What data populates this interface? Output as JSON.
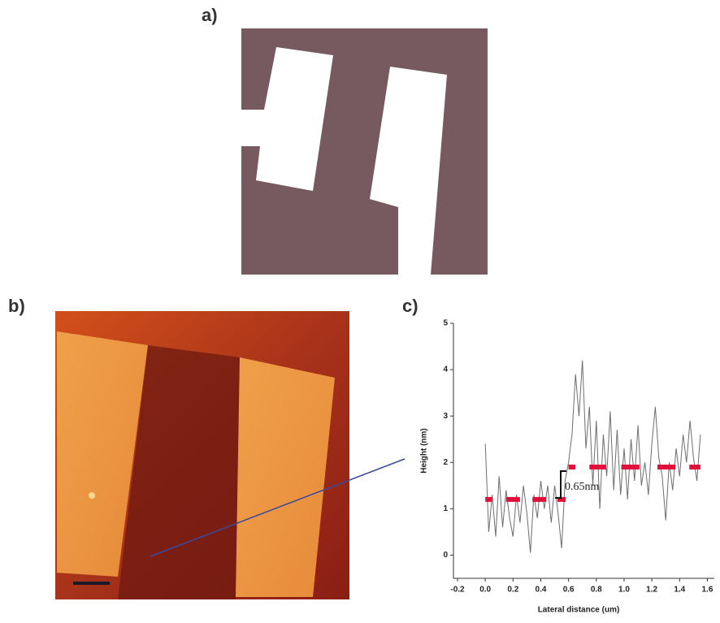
{
  "panels": {
    "a": "a)",
    "b": "b)",
    "c": "c)"
  },
  "chart_data": {
    "type": "line",
    "xlabel": "Lateral distance (um)",
    "ylabel": "Height (nm)",
    "annotation": "0.65nm",
    "xlim": [
      -0.2,
      1.65
    ],
    "ylim": [
      -0.5,
      5
    ],
    "xticks": [
      {
        "value": -0.2,
        "label": "-0.2"
      },
      {
        "value": 0,
        "label": "0.0"
      },
      0.2,
      0.4,
      0.6,
      0.8,
      {
        "value": 1,
        "label": "1.0"
      },
      1.2,
      1.4,
      1.6
    ],
    "yticks": [
      0,
      1,
      2,
      3,
      4,
      5
    ],
    "series": [
      {
        "color": "#6e6e6e",
        "width": 1,
        "x": [
          0,
          0.025,
          0.05,
          0.075,
          0.1,
          0.125,
          0.15,
          0.175,
          0.2,
          0.225,
          0.25,
          0.275,
          0.3,
          0.325,
          0.35,
          0.375,
          0.4,
          0.425,
          0.45,
          0.475,
          0.5,
          0.525,
          0.55,
          0.575,
          0.6,
          0.625,
          0.65,
          0.675,
          0.7,
          0.725,
          0.75,
          0.775,
          0.8,
          0.825,
          0.85,
          0.875,
          0.9,
          0.925,
          0.95,
          0.975,
          1,
          1.025,
          1.05,
          1.075,
          1.1,
          1.125,
          1.15,
          1.175,
          1.2,
          1.225,
          1.25,
          1.275,
          1.3,
          1.325,
          1.35,
          1.375,
          1.4,
          1.425,
          1.45,
          1.475,
          1.5,
          1.525,
          1.55
        ],
        "values": [
          2.4,
          0.5,
          1.3,
          0.4,
          1.7,
          0.6,
          1.4,
          0.8,
          0.4,
          1.3,
          0.7,
          1.5,
          0.9,
          0.05,
          1.3,
          0.8,
          1.6,
          1.0,
          1.5,
          0.7,
          1.5,
          0.9,
          0.15,
          1.6,
          2.0,
          2.6,
          3.9,
          3.0,
          4.2,
          2.3,
          3.2,
          1.5,
          2.9,
          1.0,
          2.6,
          1.7,
          3.1,
          1.4,
          2.7,
          1.3,
          2.3,
          1.2,
          2.5,
          1.6,
          2.8,
          1.5,
          2.0,
          1.3,
          2.4,
          3.2,
          2.1,
          1.7,
          0.75,
          2.0,
          1.4,
          2.3,
          1.7,
          2.6,
          2.0,
          2.9,
          2.1,
          1.6,
          2.6
        ]
      },
      {
        "color": "#e0103a",
        "width": 6,
        "x": [
          0,
          0.05,
          0.1,
          0.15,
          0.25,
          0.3,
          0.34,
          0.44,
          0.49,
          0.52,
          0.58,
          0.59,
          0.6,
          0.65,
          0.7,
          0.75,
          0.87,
          0.92,
          0.98,
          1.11,
          1.18,
          1.24,
          1.37,
          1.42,
          1.47,
          1.55
        ],
        "values": [
          1.2,
          1.2,
          null,
          1.2,
          1.2,
          null,
          1.2,
          1.2,
          null,
          1.2,
          1.2,
          null,
          1.9,
          1.9,
          null,
          1.9,
          1.9,
          null,
          1.9,
          1.9,
          null,
          1.9,
          1.9,
          null,
          1.9,
          1.9
        ]
      }
    ]
  }
}
